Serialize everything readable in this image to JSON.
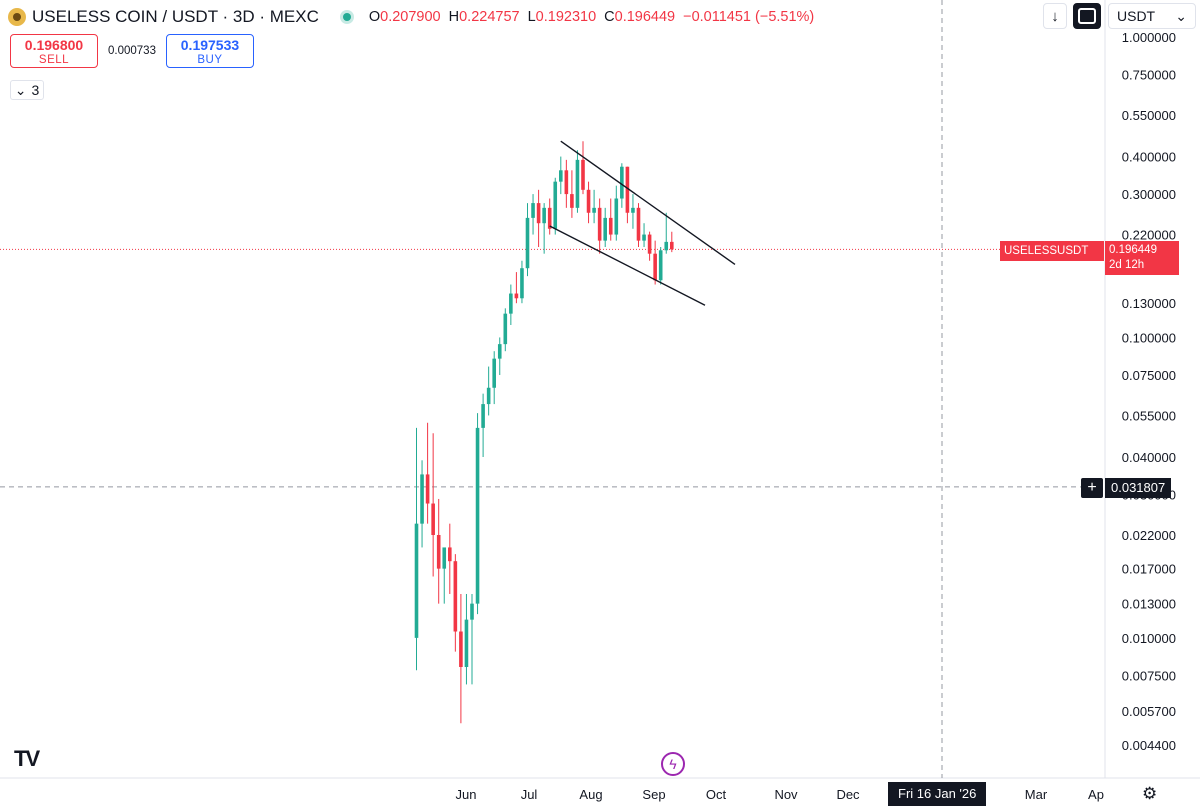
{
  "header": {
    "symbol_title": "USELESS COIN / USDT · 3D · MEXC",
    "ohlc": [
      {
        "key": "O",
        "value": "0.207900"
      },
      {
        "key": "H",
        "value": "0.224757"
      },
      {
        "key": "L",
        "value": "0.192310"
      },
      {
        "key": "C",
        "value": "0.196449"
      }
    ],
    "change": "−0.011451 (−5.51%)"
  },
  "trade_panel": {
    "sell_price": "0.196800",
    "sell_label": "SELL",
    "spread": "0.000733",
    "buy_price": "0.197533",
    "buy_label": "BUY",
    "collapsed_count": "3"
  },
  "toolbar": {
    "currency": "USDT",
    "down_icon": "arrow-down-icon",
    "fit_icon": "screen-fit-icon"
  },
  "price_label": {
    "symbol": "USELESSUSDT",
    "price": "0.196449",
    "countdown": "2d 12h"
  },
  "crosshair": {
    "price": "0.031807",
    "date": "Fri 16 Jan '26"
  },
  "colors": {
    "up": "#22ab94",
    "down": "#f23645",
    "background": "#ffffff",
    "text": "#131722"
  },
  "chart_data": {
    "type": "candlestick",
    "scale": "log",
    "title": "",
    "ylim": [
      0.0039,
      1.02
    ],
    "y_ticks": [
      "1.000000",
      "0.750000",
      "0.550000",
      "0.400000",
      "0.300000",
      "0.220000",
      "0.130000",
      "0.100000",
      "0.075000",
      "0.055000",
      "0.040000",
      "0.030000",
      "0.022000",
      "0.017000",
      "0.013000",
      "0.010000",
      "0.007500",
      "0.005700",
      "0.004400"
    ],
    "x_ticks": [
      "Jun",
      "Jul",
      "Aug",
      "Sep",
      "Oct",
      "Nov",
      "Dec",
      "Jan",
      "Mar",
      "Ap"
    ],
    "candles": [
      {
        "o": 0.01,
        "h": 0.05,
        "l": 0.0078,
        "c": 0.024
      },
      {
        "o": 0.024,
        "h": 0.039,
        "l": 0.02,
        "c": 0.035
      },
      {
        "o": 0.035,
        "h": 0.052,
        "l": 0.024,
        "c": 0.028
      },
      {
        "o": 0.028,
        "h": 0.048,
        "l": 0.016,
        "c": 0.022
      },
      {
        "o": 0.022,
        "h": 0.029,
        "l": 0.013,
        "c": 0.017
      },
      {
        "o": 0.017,
        "h": 0.019,
        "l": 0.013,
        "c": 0.02
      },
      {
        "o": 0.02,
        "h": 0.024,
        "l": 0.014,
        "c": 0.018
      },
      {
        "o": 0.018,
        "h": 0.019,
        "l": 0.009,
        "c": 0.0105
      },
      {
        "o": 0.0105,
        "h": 0.014,
        "l": 0.0052,
        "c": 0.008
      },
      {
        "o": 0.008,
        "h": 0.014,
        "l": 0.007,
        "c": 0.0115
      },
      {
        "o": 0.0115,
        "h": 0.014,
        "l": 0.007,
        "c": 0.013
      },
      {
        "o": 0.013,
        "h": 0.056,
        "l": 0.012,
        "c": 0.05
      },
      {
        "o": 0.05,
        "h": 0.065,
        "l": 0.04,
        "c": 0.06
      },
      {
        "o": 0.06,
        "h": 0.08,
        "l": 0.055,
        "c": 0.068
      },
      {
        "o": 0.068,
        "h": 0.09,
        "l": 0.06,
        "c": 0.085
      },
      {
        "o": 0.085,
        "h": 0.1,
        "l": 0.075,
        "c": 0.095
      },
      {
        "o": 0.095,
        "h": 0.125,
        "l": 0.09,
        "c": 0.12
      },
      {
        "o": 0.12,
        "h": 0.15,
        "l": 0.11,
        "c": 0.14
      },
      {
        "o": 0.14,
        "h": 0.165,
        "l": 0.13,
        "c": 0.135
      },
      {
        "o": 0.135,
        "h": 0.18,
        "l": 0.13,
        "c": 0.17
      },
      {
        "o": 0.17,
        "h": 0.28,
        "l": 0.16,
        "c": 0.25
      },
      {
        "o": 0.25,
        "h": 0.3,
        "l": 0.22,
        "c": 0.28
      },
      {
        "o": 0.28,
        "h": 0.31,
        "l": 0.2,
        "c": 0.24
      },
      {
        "o": 0.24,
        "h": 0.28,
        "l": 0.19,
        "c": 0.27
      },
      {
        "o": 0.27,
        "h": 0.29,
        "l": 0.22,
        "c": 0.23
      },
      {
        "o": 0.23,
        "h": 0.34,
        "l": 0.22,
        "c": 0.33
      },
      {
        "o": 0.33,
        "h": 0.4,
        "l": 0.3,
        "c": 0.36
      },
      {
        "o": 0.36,
        "h": 0.39,
        "l": 0.27,
        "c": 0.3
      },
      {
        "o": 0.3,
        "h": 0.36,
        "l": 0.25,
        "c": 0.27
      },
      {
        "o": 0.27,
        "h": 0.42,
        "l": 0.26,
        "c": 0.39
      },
      {
        "o": 0.39,
        "h": 0.45,
        "l": 0.3,
        "c": 0.31
      },
      {
        "o": 0.31,
        "h": 0.33,
        "l": 0.24,
        "c": 0.26
      },
      {
        "o": 0.26,
        "h": 0.31,
        "l": 0.24,
        "c": 0.27
      },
      {
        "o": 0.27,
        "h": 0.29,
        "l": 0.19,
        "c": 0.21
      },
      {
        "o": 0.21,
        "h": 0.27,
        "l": 0.2,
        "c": 0.25
      },
      {
        "o": 0.25,
        "h": 0.29,
        "l": 0.21,
        "c": 0.22
      },
      {
        "o": 0.22,
        "h": 0.32,
        "l": 0.21,
        "c": 0.29
      },
      {
        "o": 0.29,
        "h": 0.38,
        "l": 0.27,
        "c": 0.37
      },
      {
        "o": 0.37,
        "h": 0.37,
        "l": 0.24,
        "c": 0.26
      },
      {
        "o": 0.26,
        "h": 0.3,
        "l": 0.23,
        "c": 0.27
      },
      {
        "o": 0.27,
        "h": 0.28,
        "l": 0.2,
        "c": 0.21
      },
      {
        "o": 0.21,
        "h": 0.24,
        "l": 0.2,
        "c": 0.22
      },
      {
        "o": 0.22,
        "h": 0.225,
        "l": 0.18,
        "c": 0.19
      },
      {
        "o": 0.19,
        "h": 0.21,
        "l": 0.15,
        "c": 0.155
      },
      {
        "o": 0.155,
        "h": 0.2,
        "l": 0.15,
        "c": 0.195
      },
      {
        "o": 0.195,
        "h": 0.26,
        "l": 0.19,
        "c": 0.208
      },
      {
        "o": 0.208,
        "h": 0.2248,
        "l": 0.1923,
        "c": 0.1964
      }
    ],
    "trendlines": [
      {
        "name": "upper",
        "from": {
          "x": "candle 26",
          "y": 0.45
        },
        "to": {
          "x": "Oct",
          "y": 0.175
        }
      },
      {
        "name": "lower",
        "from": {
          "x": "candle 24",
          "y": 0.235
        },
        "to": {
          "x": "late Sep",
          "y": 0.128
        }
      }
    ]
  }
}
